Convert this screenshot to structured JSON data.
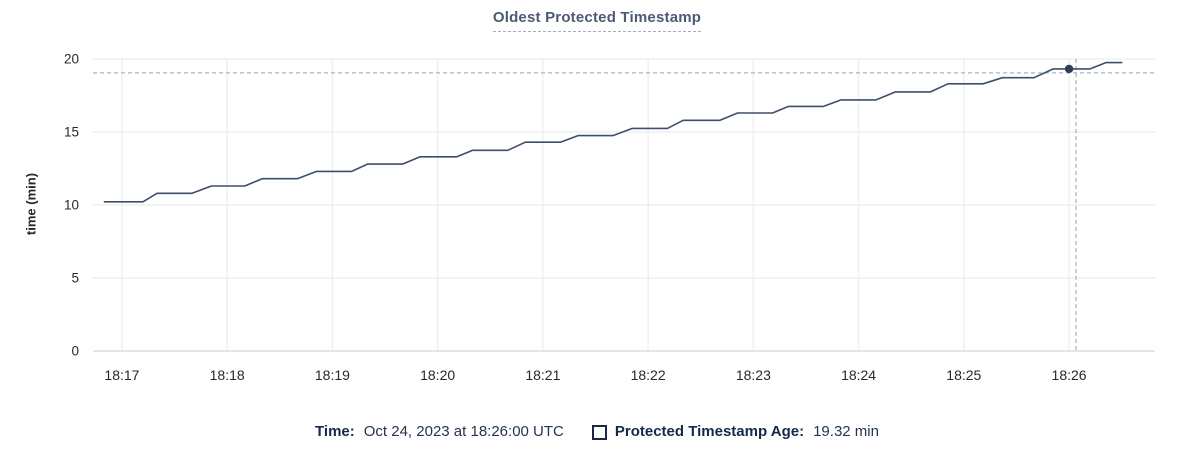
{
  "colors": {
    "title": "#4c5a74",
    "title_underline": "#9fb0c1",
    "line": "#3f4e6b",
    "point": "#2e3c57",
    "crosshair": "#a5b7c4",
    "grid": "#ececec",
    "grid_vertical": "#f0f0f0",
    "axis": "#d8d8d8",
    "tick_text": "#24292f",
    "legend_label": "#16294b",
    "legend_value": "#24354f"
  },
  "legend": {
    "time_label": "Time:",
    "time_value": "Oct 24, 2023 at 18:26:00 UTC",
    "series_swatch": "hollow-square",
    "series_label": "Protected Timestamp Age:",
    "series_value": "19.32 min"
  },
  "chart_data": {
    "type": "line",
    "title": "Oldest Protected Timestamp",
    "xlabel": "",
    "ylabel": "time (min)",
    "ylim": [
      0,
      20
    ],
    "y_ticks": [
      0,
      5,
      10,
      15,
      20
    ],
    "xlim_seconds": [
      43.5,
      649
    ],
    "x_ticks": [
      {
        "t": 60,
        "label": "18:17"
      },
      {
        "t": 120,
        "label": "18:18"
      },
      {
        "t": 180,
        "label": "18:19"
      },
      {
        "t": 240,
        "label": "18:20"
      },
      {
        "t": 300,
        "label": "18:21"
      },
      {
        "t": 360,
        "label": "18:22"
      },
      {
        "t": 420,
        "label": "18:23"
      },
      {
        "t": 480,
        "label": "18:24"
      },
      {
        "t": 540,
        "label": "18:25"
      },
      {
        "t": 600,
        "label": "18:26"
      }
    ],
    "grid": true,
    "legend_position": "bottom",
    "series": [
      {
        "name": "Protected Timestamp Age",
        "unit": "min",
        "points": [
          [
            50,
            10.22
          ],
          [
            72,
            10.22
          ],
          [
            80,
            10.8
          ],
          [
            100,
            10.8
          ],
          [
            111,
            11.3
          ],
          [
            130,
            11.3
          ],
          [
            140,
            11.8
          ],
          [
            160,
            11.8
          ],
          [
            171,
            12.3
          ],
          [
            191,
            12.3
          ],
          [
            200,
            12.8
          ],
          [
            220,
            12.8
          ],
          [
            230,
            13.3
          ],
          [
            251,
            13.3
          ],
          [
            260,
            13.75
          ],
          [
            280,
            13.75
          ],
          [
            290,
            14.3
          ],
          [
            310,
            14.3
          ],
          [
            320,
            14.75
          ],
          [
            340,
            14.75
          ],
          [
            351,
            15.25
          ],
          [
            371,
            15.25
          ],
          [
            380,
            15.8
          ],
          [
            401,
            15.8
          ],
          [
            411,
            16.3
          ],
          [
            431,
            16.3
          ],
          [
            440,
            16.75
          ],
          [
            460,
            16.75
          ],
          [
            470,
            17.2
          ],
          [
            490,
            17.2
          ],
          [
            501,
            17.75
          ],
          [
            521,
            17.75
          ],
          [
            531,
            18.3
          ],
          [
            551,
            18.3
          ],
          [
            562,
            18.72
          ],
          [
            580,
            18.72
          ],
          [
            591,
            19.32
          ],
          [
            612,
            19.32
          ],
          [
            621,
            19.75
          ],
          [
            630,
            19.75
          ]
        ]
      }
    ],
    "highlight_point": {
      "t": 600,
      "time": "18:26:00",
      "value": 19.32
    },
    "crosshair": {
      "t": 604,
      "value": 19.05
    }
  }
}
